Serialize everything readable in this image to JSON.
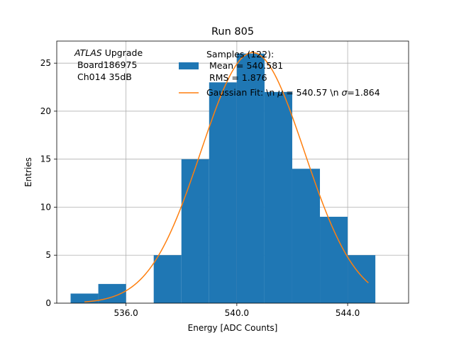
{
  "chart_data": {
    "type": "bar",
    "title": "Run 805",
    "xlabel": "Energy [ADC Counts]",
    "ylabel": "Entries",
    "xlim": [
      533.5,
      546.2
    ],
    "ylim": [
      0,
      27.3
    ],
    "xticks": [
      536.0,
      540.0,
      544.0
    ],
    "xtick_labels": [
      "536.0",
      "540.0",
      "544.0"
    ],
    "yticks": [
      0,
      5,
      10,
      15,
      20,
      25
    ],
    "ytick_labels": [
      "0",
      "5",
      "10",
      "15",
      "20",
      "25"
    ],
    "grid": true,
    "bins": [
      {
        "x0": 534,
        "x1": 535,
        "count": 1
      },
      {
        "x0": 535,
        "x1": 536,
        "count": 2
      },
      {
        "x0": 536,
        "x1": 537,
        "count": 0
      },
      {
        "x0": 537,
        "x1": 538,
        "count": 5
      },
      {
        "x0": 538,
        "x1": 539,
        "count": 15
      },
      {
        "x0": 539,
        "x1": 540,
        "count": 23
      },
      {
        "x0": 540,
        "x1": 541,
        "count": 26
      },
      {
        "x0": 541,
        "x1": 542,
        "count": 22
      },
      {
        "x0": 542,
        "x1": 543,
        "count": 14
      },
      {
        "x0": 543,
        "x1": 544,
        "count": 9
      },
      {
        "x0": 544,
        "x1": 545,
        "count": 5
      }
    ],
    "fit": {
      "amplitude": 26.1,
      "mu": 540.57,
      "sigma": 1.864,
      "x_range": [
        534.5,
        544.75
      ]
    },
    "colors": {
      "bars": "#1f77b4",
      "fit": "#ff7f0e",
      "grid": "#b0b0b0"
    },
    "annotation": {
      "line1_italic": "ATLAS",
      "line1_rest": " Upgrade",
      "line2": " Board186975",
      "line3": " Ch014 35dB"
    },
    "legend": {
      "placement": "top-right",
      "hist_lines": [
        "Samples (122):",
        " Mean = 540.581",
        " RMS = 1.876"
      ],
      "fit_label_pre": "Gaussian Fit: \\n ",
      "fit_label_mu": "μ",
      "fit_label_mid": " = 540.57 \\n ",
      "fit_label_sigma": "σ",
      "fit_label_post": "=1.864"
    }
  }
}
